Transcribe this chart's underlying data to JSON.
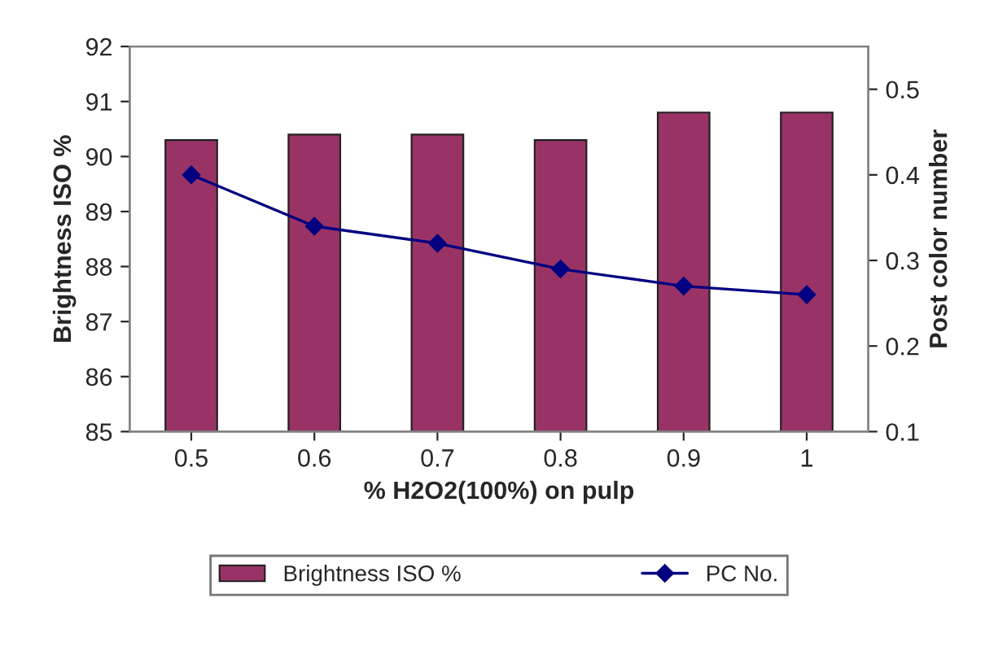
{
  "chart_data": {
    "type": "bar",
    "xlabel": "% H2O2(100%) on pulp",
    "ylabel": "Brightness ISO %",
    "y2label": "Post color number",
    "categories": [
      "0.5",
      "0.6",
      "0.7",
      "0.8",
      "0.9",
      "1"
    ],
    "series": [
      {
        "name": "Brightness ISO %",
        "color": "#993366",
        "values": [
          90.3,
          90.4,
          90.4,
          90.3,
          90.8,
          90.8
        ]
      },
      {
        "name": "PC No.",
        "type": "line",
        "axis": "y2",
        "color": "#000080",
        "marker": "diamond",
        "values": [
          0.4,
          0.34,
          0.32,
          0.29,
          0.27,
          0.26
        ]
      }
    ],
    "ylim": [
      85,
      92
    ],
    "yticks": [
      85,
      86,
      87,
      88,
      89,
      90,
      91,
      92
    ],
    "y2lim": [
      0.1,
      0.55
    ],
    "y2ticks": [
      0.1,
      0.2,
      0.3,
      0.4,
      0.5
    ],
    "legend": "bottom",
    "grid": false
  }
}
